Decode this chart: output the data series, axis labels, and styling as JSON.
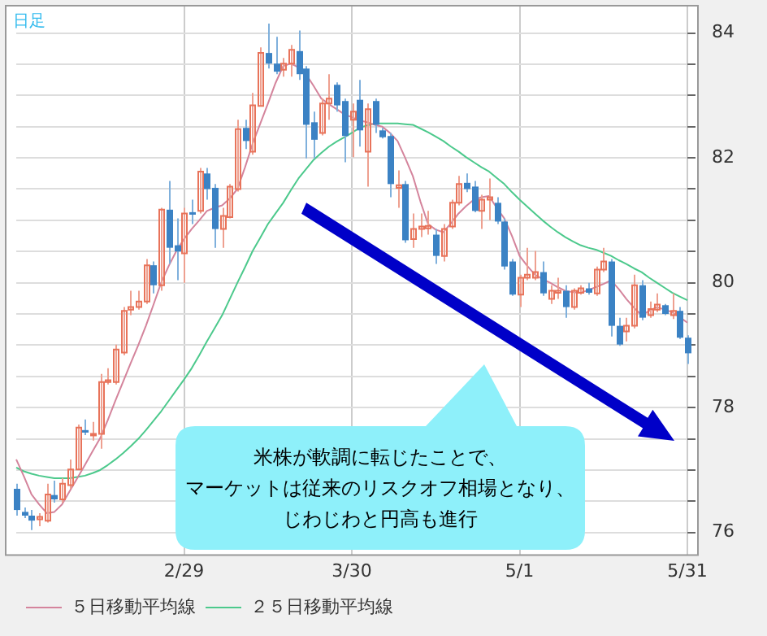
{
  "chart_data": {
    "type": "candlestick",
    "annotations": [
      "日足",
      "米株が軟調に転じたことで、",
      "マーケットは従来のリスクオフ相場となり、",
      "じわじわと円高も進行"
    ],
    "categories": [
      null,
      null,
      null,
      null,
      null,
      null,
      null,
      null,
      null,
      null,
      null,
      null,
      null,
      null,
      null,
      null,
      null,
      null,
      null,
      null,
      null,
      null,
      "2/29",
      null,
      null,
      null,
      null,
      null,
      null,
      null,
      null,
      null,
      null,
      null,
      null,
      null,
      null,
      null,
      null,
      null,
      null,
      null,
      null,
      null,
      "3/30",
      null,
      null,
      null,
      null,
      null,
      null,
      null,
      null,
      null,
      null,
      null,
      null,
      null,
      null,
      null,
      null,
      null,
      null,
      null,
      null,
      null,
      "5/1",
      null,
      null,
      null,
      null,
      null,
      null,
      null,
      null,
      null,
      null,
      null,
      null,
      null,
      null,
      null,
      null,
      null,
      null,
      null,
      null,
      null,
      "5/31"
    ],
    "ohlc": [
      [
        76.7,
        76.78,
        76.27,
        76.36
      ],
      [
        76.33,
        76.4,
        76.23,
        76.27
      ],
      [
        76.27,
        76.36,
        76.04,
        76.19
      ],
      [
        76.21,
        76.31,
        76.1,
        76.25
      ],
      [
        76.19,
        76.78,
        76.16,
        76.61
      ],
      [
        76.6,
        76.83,
        76.48,
        76.53
      ],
      [
        76.53,
        76.87,
        76.48,
        76.78
      ],
      [
        76.76,
        77.17,
        76.7,
        77.01
      ],
      [
        77.01,
        77.73,
        77.0,
        77.68
      ],
      [
        77.64,
        77.81,
        77.56,
        77.6
      ],
      [
        77.56,
        77.77,
        77.47,
        77.58
      ],
      [
        77.58,
        78.54,
        77.34,
        78.41
      ],
      [
        78.41,
        78.63,
        78.37,
        78.44
      ],
      [
        78.41,
        79.01,
        78.37,
        78.93
      ],
      [
        78.88,
        79.61,
        78.84,
        79.55
      ],
      [
        79.57,
        79.87,
        79.48,
        79.61
      ],
      [
        79.61,
        79.87,
        79.57,
        79.7
      ],
      [
        79.7,
        80.38,
        79.66,
        80.28
      ],
      [
        80.28,
        80.34,
        79.83,
        79.96
      ],
      [
        79.96,
        81.2,
        79.87,
        81.17
      ],
      [
        81.17,
        81.63,
        80.3,
        80.56
      ],
      [
        80.6,
        81.03,
        80.04,
        80.5
      ],
      [
        80.47,
        81.2,
        80.0,
        81.11
      ],
      [
        81.13,
        81.33,
        80.94,
        81.09
      ],
      [
        81.15,
        81.84,
        81.11,
        81.78
      ],
      [
        81.75,
        81.84,
        81.33,
        81.5
      ],
      [
        81.52,
        81.58,
        80.56,
        80.86
      ],
      [
        80.86,
        81.2,
        80.56,
        81.07
      ],
      [
        81.05,
        81.58,
        81.03,
        81.54
      ],
      [
        81.5,
        82.61,
        81.46,
        82.46
      ],
      [
        82.48,
        82.61,
        82.14,
        82.27
      ],
      [
        82.1,
        83.04,
        82.05,
        82.84
      ],
      [
        82.83,
        83.77,
        82.83,
        83.68
      ],
      [
        83.68,
        84.15,
        83.43,
        83.51
      ],
      [
        83.51,
        83.94,
        83.34,
        83.38
      ],
      [
        83.41,
        83.6,
        83.3,
        83.51
      ],
      [
        83.51,
        83.81,
        83.3,
        83.73
      ],
      [
        83.71,
        84.04,
        83.25,
        83.34
      ],
      [
        83.43,
        83.47,
        81.99,
        82.53
      ],
      [
        82.57,
        82.74,
        81.99,
        82.29
      ],
      [
        82.4,
        82.95,
        82.36,
        82.87
      ],
      [
        82.87,
        83.34,
        82.61,
        82.95
      ],
      [
        83.17,
        83.21,
        82.74,
        82.84
      ],
      [
        82.91,
        82.95,
        81.93,
        82.35
      ],
      [
        82.61,
        82.87,
        82.01,
        82.74
      ],
      [
        82.93,
        83.25,
        82.18,
        82.44
      ],
      [
        82.1,
        82.87,
        81.54,
        82.78
      ],
      [
        82.91,
        82.95,
        82.4,
        82.53
      ],
      [
        82.44,
        82.48,
        82.31,
        82.33
      ],
      [
        82.35,
        82.4,
        81.37,
        81.58
      ],
      [
        81.52,
        81.8,
        81.2,
        81.56
      ],
      [
        81.58,
        81.63,
        80.64,
        80.68
      ],
      [
        80.7,
        81.11,
        80.56,
        80.86
      ],
      [
        80.86,
        81.11,
        80.73,
        80.9
      ],
      [
        80.87,
        81.15,
        80.77,
        80.91
      ],
      [
        80.77,
        80.86,
        80.3,
        80.43
      ],
      [
        80.43,
        80.94,
        80.34,
        80.86
      ],
      [
        80.9,
        81.33,
        80.86,
        81.28
      ],
      [
        81.28,
        81.71,
        81.24,
        81.58
      ],
      [
        81.6,
        81.75,
        81.45,
        81.5
      ],
      [
        81.54,
        81.63,
        81.13,
        81.15
      ],
      [
        81.15,
        81.41,
        80.86,
        81.33
      ],
      [
        81.33,
        81.67,
        81.0,
        81.37
      ],
      [
        81.28,
        81.37,
        80.94,
        80.98
      ],
      [
        80.98,
        81.03,
        80.21,
        80.26
      ],
      [
        80.34,
        80.38,
        79.79,
        79.81
      ],
      [
        79.81,
        80.13,
        79.61,
        80.08
      ],
      [
        80.08,
        80.56,
        80.04,
        80.13
      ],
      [
        80.08,
        80.51,
        80.04,
        80.17
      ],
      [
        80.17,
        80.34,
        79.79,
        79.83
      ],
      [
        79.74,
        79.96,
        79.66,
        79.87
      ],
      [
        79.84,
        80.08,
        79.74,
        79.87
      ],
      [
        79.87,
        79.96,
        79.44,
        79.61
      ],
      [
        79.61,
        79.91,
        79.57,
        79.87
      ],
      [
        79.84,
        79.96,
        79.81,
        79.91
      ],
      [
        79.91,
        80.0,
        79.81,
        79.84
      ],
      [
        79.83,
        80.26,
        79.79,
        80.21
      ],
      [
        80.21,
        80.56,
        80.17,
        80.34
      ],
      [
        80.34,
        80.38,
        79.14,
        79.31
      ],
      [
        79.31,
        79.44,
        78.99,
        79.01
      ],
      [
        79.22,
        79.44,
        79.06,
        79.31
      ],
      [
        79.31,
        80.13,
        79.27,
        79.96
      ],
      [
        79.96,
        80.04,
        79.4,
        79.44
      ],
      [
        79.48,
        79.7,
        79.44,
        79.58
      ],
      [
        79.57,
        79.83,
        79.53,
        79.65
      ],
      [
        79.64,
        79.66,
        79.48,
        79.5
      ],
      [
        79.48,
        79.83,
        79.42,
        79.55
      ],
      [
        79.55,
        79.61,
        79.1,
        79.12
      ],
      [
        79.12,
        79.16,
        78.7,
        78.87
      ]
    ],
    "series": [
      {
        "type": "line",
        "name": "５日移動平均線",
        "color": "#d4849c",
        "values": [
          77.17,
          76.9,
          76.61,
          76.45,
          76.31,
          76.33,
          76.45,
          76.66,
          76.87,
          77.08,
          77.3,
          77.51,
          77.8,
          78.11,
          78.41,
          78.71,
          79.0,
          79.31,
          79.65,
          80.0,
          80.27,
          80.51,
          80.7,
          80.86,
          81.0,
          81.15,
          81.2,
          81.24,
          81.35,
          81.5,
          81.85,
          82.23,
          82.55,
          82.87,
          83.2,
          83.47,
          83.51,
          83.45,
          83.34,
          83.15,
          82.95,
          82.86,
          82.78,
          82.7,
          82.65,
          82.6,
          82.57,
          82.53,
          82.5,
          82.4,
          82.27,
          82.0,
          81.71,
          81.3,
          80.94,
          80.85,
          80.81,
          80.95,
          81.11,
          81.23,
          81.33,
          81.37,
          81.39,
          81.2,
          81.03,
          80.75,
          80.43,
          80.27,
          80.13,
          80.06,
          80.0,
          79.93,
          79.87,
          79.85,
          79.84,
          79.88,
          79.93,
          79.98,
          80.04,
          79.9,
          79.74,
          79.6,
          79.48,
          79.55,
          79.61,
          79.57,
          79.53,
          79.45,
          79.36
        ]
      },
      {
        "type": "line",
        "name": "２５日移動平均線",
        "color": "#4cc98c",
        "values": [
          77.04,
          76.98,
          76.94,
          76.91,
          76.89,
          76.87,
          76.87,
          76.87,
          76.89,
          76.91,
          76.95,
          77.0,
          77.08,
          77.17,
          77.27,
          77.38,
          77.5,
          77.64,
          77.79,
          77.94,
          78.11,
          78.28,
          78.45,
          78.63,
          78.84,
          79.06,
          79.27,
          79.48,
          79.74,
          80.0,
          80.25,
          80.51,
          80.72,
          80.94,
          81.11,
          81.28,
          81.48,
          81.67,
          81.82,
          81.97,
          82.08,
          82.18,
          82.26,
          82.33,
          82.4,
          82.48,
          82.52,
          82.55,
          82.55,
          82.55,
          82.55,
          82.54,
          82.53,
          82.47,
          82.41,
          82.34,
          82.27,
          82.18,
          82.1,
          82.01,
          81.93,
          81.85,
          81.78,
          81.68,
          81.58,
          81.45,
          81.33,
          81.22,
          81.11,
          81.0,
          80.9,
          80.81,
          80.73,
          80.66,
          80.6,
          80.56,
          80.53,
          80.48,
          80.43,
          80.36,
          80.3,
          80.23,
          80.17,
          80.08,
          80.0,
          79.92,
          79.84,
          79.78,
          79.72
        ]
      }
    ],
    "ylim": [
      75.65,
      84.45
    ],
    "yticks": [
      76,
      {
        "value": 76.5,
        "label": null
      },
      {
        "value": 77,
        "label": null
      },
      {
        "value": 77.5,
        "label": null
      },
      78,
      {
        "value": 78.5,
        "label": null
      },
      {
        "value": 79,
        "label": null
      },
      {
        "value": 79.5,
        "label": null
      },
      80,
      {
        "value": 80.5,
        "label": null
      },
      {
        "value": 81,
        "label": null
      },
      {
        "value": 81.5,
        "label": null
      },
      82,
      {
        "value": 82.5,
        "label": null
      },
      {
        "value": 83,
        "label": null
      },
      {
        "value": 83.5,
        "label": null
      },
      84
    ],
    "grid": true,
    "legend": "bottom",
    "marker": "none",
    "line_style": "solid"
  }
}
